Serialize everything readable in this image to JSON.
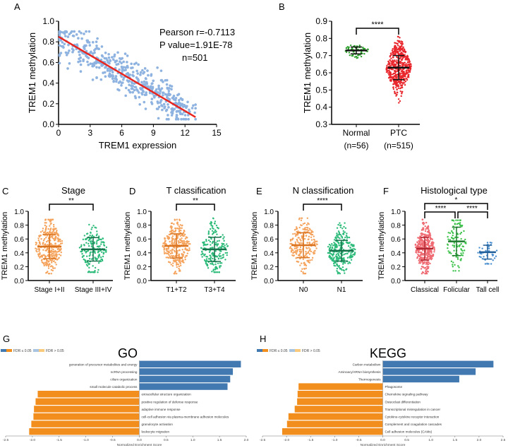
{
  "chart_data": [
    {
      "id": "A",
      "type": "scatter",
      "panel": "A",
      "xlabel": "TREM1 expression",
      "ylabel": "TREM1 methylation",
      "xlim": [
        0,
        15
      ],
      "ylim": [
        0,
        1.0
      ],
      "xticks": [
        "0",
        "3",
        "6",
        "9",
        "12",
        "15"
      ],
      "yticks": [
        "0.0",
        "0.2",
        "0.4",
        "0.6",
        "0.8",
        "1.0"
      ],
      "annotations": [
        "Pearson r=-0.7113",
        "P value=1.91E-78",
        "n=501"
      ],
      "n": 501,
      "fit": {
        "slope": -0.06,
        "intercept": 0.85,
        "x_end": 13
      },
      "colors": {
        "points": "#8fb3e0",
        "line": "#e8261f"
      }
    },
    {
      "id": "B",
      "type": "scatter",
      "panel": "B",
      "ylabel": "TREM1 methylation",
      "ylim": [
        0.3,
        0.9
      ],
      "yticks": [
        "0.3",
        "0.4",
        "0.5",
        "0.6",
        "0.7",
        "0.8",
        "0.9"
      ],
      "significance": [
        {
          "from": 0,
          "to": 1,
          "label": "****"
        }
      ],
      "groups": [
        {
          "name": "Normal",
          "n_label": "(n=56)",
          "n": 56,
          "mean": 0.73,
          "sd": 0.02,
          "min": 0.64,
          "max": 0.77,
          "color": "#2ca02c"
        },
        {
          "name": "PTC",
          "n_label": "(n=515)",
          "n": 515,
          "mean": 0.63,
          "sd": 0.07,
          "min": 0.39,
          "max": 0.81,
          "color": "#e8262c"
        }
      ]
    },
    {
      "id": "C",
      "type": "scatter",
      "panel": "C",
      "title": "Stage",
      "ylabel": "TREM1 methylation",
      "ylim": [
        0,
        1.0
      ],
      "yticks": [
        "0.0",
        "0.2",
        "0.4",
        "0.6",
        "0.8",
        "1.0"
      ],
      "significance": [
        {
          "from": 0,
          "to": 1,
          "label": "**"
        }
      ],
      "groups": [
        {
          "name": "Stage I+II",
          "n": 330,
          "mean": 0.49,
          "sd": 0.175,
          "min": 0.1,
          "max": 0.88,
          "color": "#f5a35c",
          "line": "#d9731f"
        },
        {
          "name": "Stage III+IV",
          "n": 170,
          "mean": 0.45,
          "sd": 0.17,
          "min": 0.12,
          "max": 0.9,
          "color": "#2dbb7a",
          "line": "#16704a"
        }
      ]
    },
    {
      "id": "D",
      "type": "scatter",
      "panel": "D",
      "title": "T classification",
      "ylabel": "TREM1 methylation",
      "ylim": [
        0,
        1.0
      ],
      "yticks": [
        "0.0",
        "0.2",
        "0.4",
        "0.6",
        "0.8",
        "1.0"
      ],
      "significance": [
        {
          "from": 0,
          "to": 1,
          "label": "**"
        }
      ],
      "groups": [
        {
          "name": "T1+T2",
          "n": 300,
          "mean": 0.5,
          "sd": 0.175,
          "min": 0.1,
          "max": 0.88,
          "color": "#f5a35c",
          "line": "#d9731f"
        },
        {
          "name": "T3+T4",
          "n": 200,
          "mean": 0.45,
          "sd": 0.175,
          "min": 0.12,
          "max": 0.9,
          "color": "#2dbb7a",
          "line": "#16704a"
        }
      ]
    },
    {
      "id": "E",
      "type": "scatter",
      "panel": "E",
      "title": "N classification",
      "ylabel": "TREM1 methylation",
      "ylim": [
        0,
        1.0
      ],
      "yticks": [
        "0.0",
        "0.2",
        "0.4",
        "0.6",
        "0.8",
        "1.0"
      ],
      "significance": [
        {
          "from": 0,
          "to": 1,
          "label": "****"
        }
      ],
      "groups": [
        {
          "name": "N0",
          "n": 230,
          "mean": 0.51,
          "sd": 0.18,
          "min": 0.1,
          "max": 0.9,
          "color": "#f5a35c",
          "line": "#d9731f"
        },
        {
          "name": "N1",
          "n": 270,
          "mean": 0.43,
          "sd": 0.15,
          "min": 0.1,
          "max": 0.83,
          "color": "#2dbb7a",
          "line": "#16704a"
        }
      ]
    },
    {
      "id": "F",
      "type": "scatter",
      "panel": "F",
      "title": "Histological type",
      "ylabel": "TREM1 methylation",
      "ylim": [
        0,
        1.0
      ],
      "yticks": [
        "0.0",
        "0.2",
        "0.4",
        "0.6",
        "0.8",
        "1.0"
      ],
      "significance": [
        {
          "from": 0,
          "to": 2,
          "label": "*"
        },
        {
          "from": 0,
          "to": 1,
          "label": "****"
        },
        {
          "from": 1,
          "to": 2,
          "label": "****"
        }
      ],
      "groups": [
        {
          "name": "Classical",
          "n": 360,
          "mean": 0.46,
          "sd": 0.165,
          "min": 0.1,
          "max": 0.88,
          "color": "#ef6b73",
          "line": "#b0252f"
        },
        {
          "name": "Folicular",
          "n": 100,
          "mean": 0.565,
          "sd": 0.205,
          "min": 0.14,
          "max": 0.87,
          "color": "#3cc24a",
          "line": "#1b7a2a"
        },
        {
          "name": "Tall cell",
          "n": 36,
          "mean": 0.41,
          "sd": 0.1,
          "min": 0.24,
          "max": 0.66,
          "color": "#4a8fd0",
          "line": "#1f5e99"
        }
      ]
    },
    {
      "id": "G",
      "type": "bar",
      "panel": "G",
      "title": "GO",
      "xlabel": "Normalized Enrichment Score",
      "xlim": [
        -2.5,
        2.0
      ],
      "xticks": [
        "-2.5",
        "-2.0",
        "-1.5",
        "-1.0",
        "-0.5",
        "0.0",
        "0.5",
        "1.0",
        "1.5",
        "2.0"
      ],
      "legend": [
        "FDR ≤ 0.05",
        "FDR > 0.05"
      ],
      "categories": [
        "generation of precursor metabolites and energy",
        "ncRNA processing",
        "cilium organization",
        "small molecule catabolic process",
        "extracellular structure organization",
        "positive regulation of defense response",
        "adaptive immune response",
        "cell-cell adhesion via plasma-membrane adhesion molecules",
        "granulocyte activation",
        "leukocyte migration"
      ],
      "values": [
        1.9,
        1.75,
        1.7,
        1.65,
        -1.9,
        -1.94,
        -1.97,
        -1.98,
        -2.02,
        -2.06
      ]
    },
    {
      "id": "H",
      "type": "bar",
      "panel": "H",
      "title": "KEGG",
      "xlabel": "Normalized Enrichment Score",
      "xlim": [
        -2.5,
        2.5
      ],
      "xticks": [
        "-2.5",
        "-2.0",
        "-1.5",
        "-1.0",
        "-0.5",
        "0.0",
        "0.5",
        "1.0",
        "1.5",
        "2.0",
        "2.5"
      ],
      "legend": [
        "FDR ≤ 0.05",
        "FDR > 0.05"
      ],
      "categories": [
        "Carbon metabolism",
        "Aminoacyl-tRNA biosynthesis",
        "Thermogenesis",
        "Phagosome",
        "Chemokine signaling pathway",
        "Osteoclast differentiation",
        "Transcriptional misregulation in cancer",
        "Cytokine-cytokine receptor interaction",
        "Complement and coagulation cascades",
        "Cell adhesion molecules (CAMs)"
      ],
      "values": [
        2.3,
        1.93,
        1.59,
        -1.75,
        -1.77,
        -1.78,
        -1.83,
        -1.96,
        -1.99,
        -2.09
      ]
    }
  ],
  "colors": {
    "positive": "#4279b0",
    "negative": "#f28e1e",
    "positive_light": "#a8c4e0",
    "negative_light": "#f9c97c"
  }
}
